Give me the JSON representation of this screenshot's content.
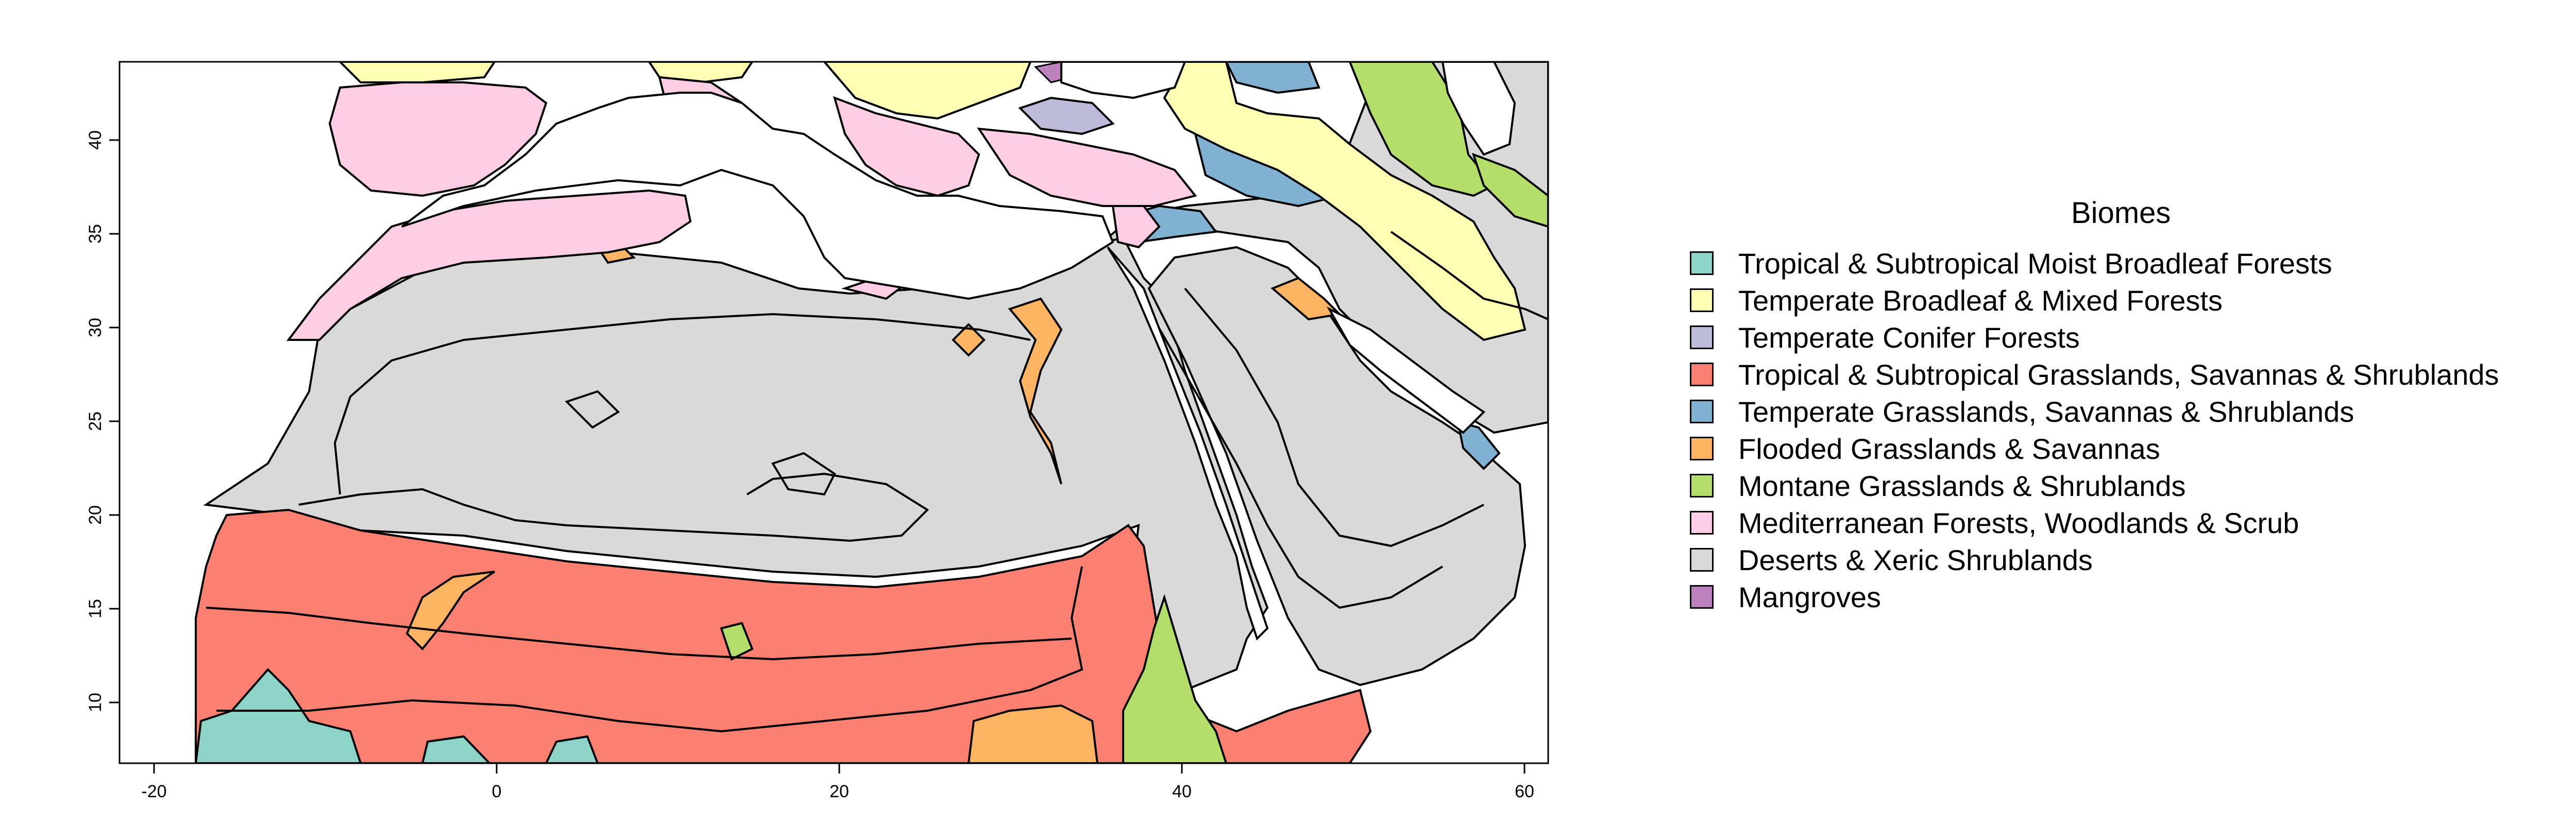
{
  "map": {
    "x_ticks": [
      "-20",
      "0",
      "20",
      "40",
      "60"
    ],
    "y_ticks": [
      "40",
      "35",
      "30",
      "25",
      "20",
      "15",
      "10"
    ],
    "x_range": [
      -22,
      62
    ],
    "y_range": [
      6.5,
      44
    ]
  },
  "legend": {
    "title": "Biomes",
    "items": [
      {
        "label": "Tropical & Subtropical Moist Broadleaf Forests",
        "color": "#8DD3C7"
      },
      {
        "label": "Temperate Broadleaf & Mixed Forests",
        "color": "#FFFFB3"
      },
      {
        "label": "Temperate Conifer Forests",
        "color": "#BEBADA"
      },
      {
        "label": "Tropical & Subtropical Grasslands, Savannas & Shrublands",
        "color": "#FB8072"
      },
      {
        "label": "Temperate Grasslands, Savannas & Shrublands",
        "color": "#80B1D3"
      },
      {
        "label": "Flooded Grasslands & Savannas",
        "color": "#FDB462"
      },
      {
        "label": "Montane Grasslands & Shrublands",
        "color": "#B3DE69"
      },
      {
        "label": "Mediterranean Forests, Woodlands & Scrub",
        "color": "#FCCDE5"
      },
      {
        "label": "Deserts & Xeric Shrublands",
        "color": "#D9D9D9"
      },
      {
        "label": "Mangroves",
        "color": "#BC80BD"
      }
    ]
  }
}
